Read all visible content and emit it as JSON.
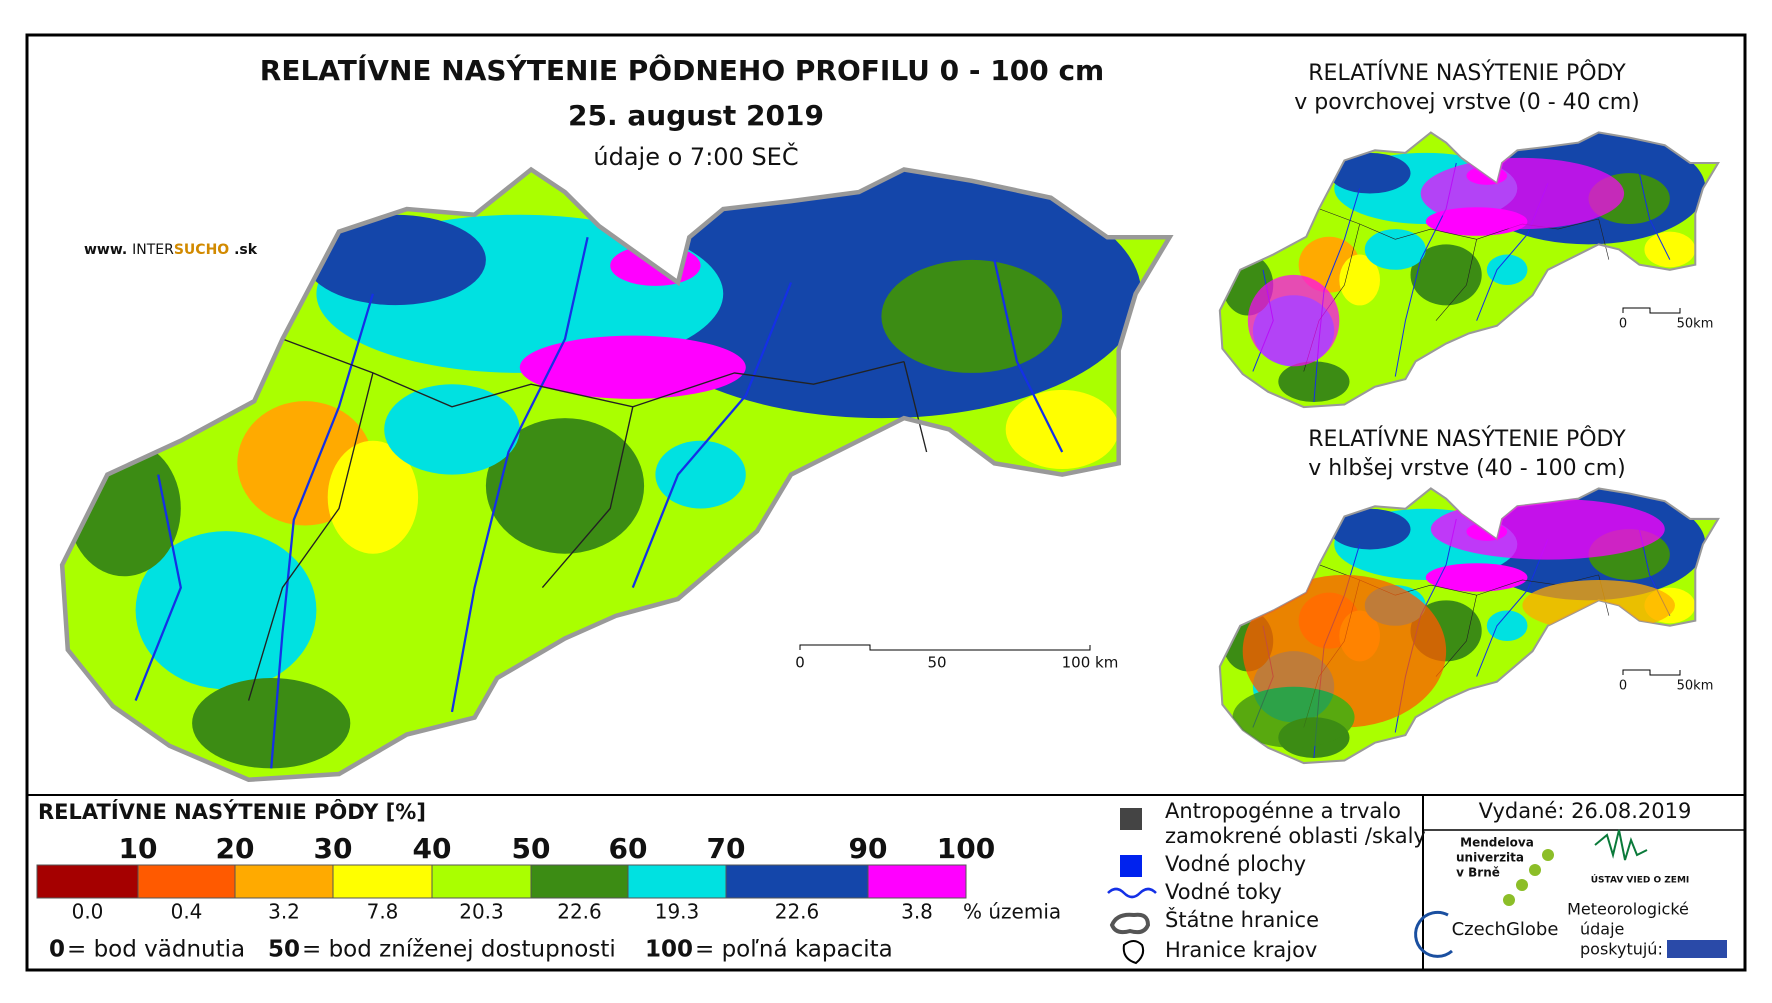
{
  "header": {
    "title": "RELATÍVNE NASÝTENIE PÔDNEHO PROFILU 0 - 100 cm",
    "date": "25. august 2019",
    "time_note": "údaje o 7:00 SEČ",
    "website": [
      "www.",
      "INTER",
      "SUCHO",
      ".sk"
    ]
  },
  "inset_top": {
    "title": "RELATÍVNE NASÝTENIE PÔDY",
    "subtitle": "v povrchovej vrstve (0 - 40 cm)",
    "scale": [
      "0",
      "50km"
    ]
  },
  "inset_bottom": {
    "title": "RELATÍVNE NASÝTENIE PÔDY",
    "subtitle": "v hlbšej vrstve (40 - 100 cm)",
    "scale": [
      "0",
      "50km"
    ]
  },
  "scale_bar": [
    "0",
    "50",
    "100 km"
  ],
  "legend": {
    "title": "RELATÍVNE NASÝTENIE PÔDY [%]",
    "thresholds": [
      "10",
      "20",
      "30",
      "40",
      "50",
      "60",
      "70",
      "90",
      "100"
    ],
    "classes": [
      {
        "color": "#a50000",
        "share": "0.0"
      },
      {
        "color": "#ff5a00",
        "share": "0.4"
      },
      {
        "color": "#ffaa00",
        "share": "3.2"
      },
      {
        "color": "#ffff00",
        "share": "7.8"
      },
      {
        "color": "#aaff00",
        "share": "20.3"
      },
      {
        "color": "#3c8c14",
        "share": "22.6"
      },
      {
        "color": "#00e1e1",
        "share": "19.3"
      },
      {
        "color": "#1446aa",
        "share": "22.6"
      },
      {
        "color": "#ff00ff",
        "share": "3.8"
      }
    ],
    "share_unit": "% územia",
    "notes": [
      {
        "value": "0",
        "text": "= bod vädnutia"
      },
      {
        "value": "50",
        "text": "= bod zníženej dostupnosti"
      },
      {
        "value": "100",
        "text": "= poľná kapacita"
      }
    ]
  },
  "symbols": [
    {
      "lines": [
        "Antropogénne a trvalo",
        "zamokrené oblasti /skaly"
      ]
    },
    {
      "lines": [
        "Vodné plochy"
      ]
    },
    {
      "lines": [
        "Vodné toky"
      ]
    },
    {
      "lines": [
        "Štátne hranice"
      ]
    },
    {
      "lines": [
        "Hranice krajov"
      ]
    }
  ],
  "issued": "Vydané: 26.08.2019",
  "logos": {
    "mendel": [
      "Mendelova",
      "univerzita",
      "v Brně"
    ],
    "czechglobe": "CzechGlobe",
    "ustav": "ÚSTAV VIED O ZEMI",
    "meteo": [
      "Meteorologické",
      "údaje",
      "poskytujú:"
    ]
  }
}
